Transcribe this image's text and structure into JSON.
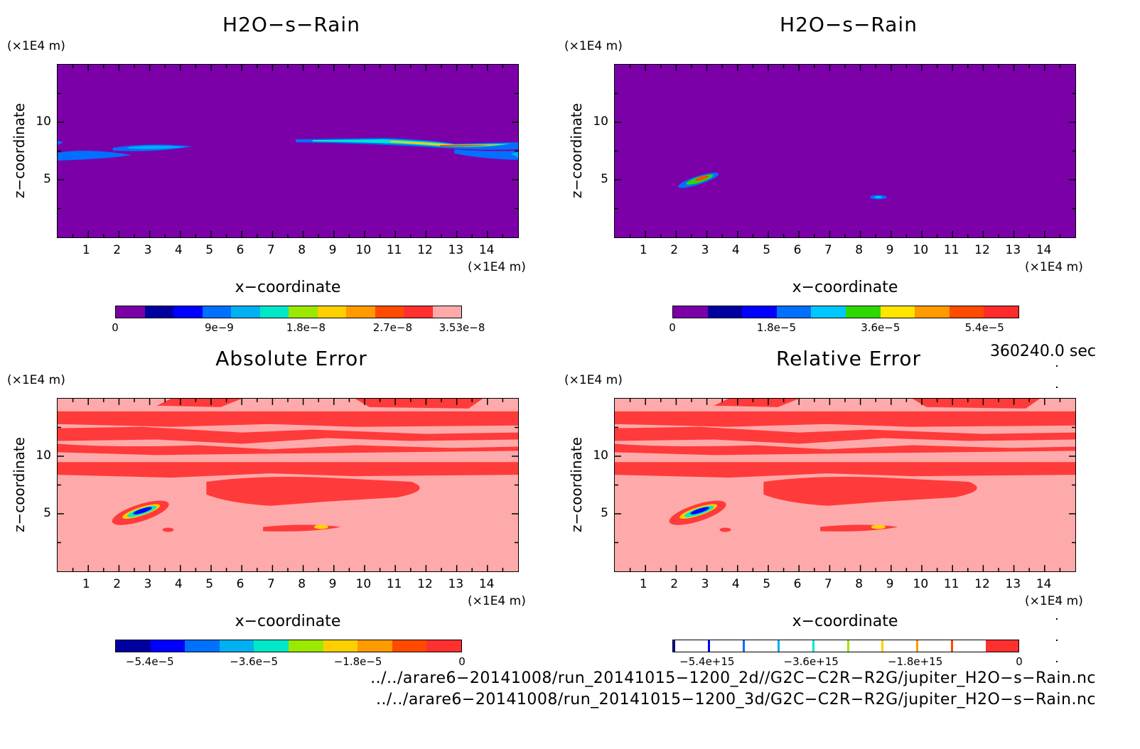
{
  "panels": [
    {
      "title": "H2O−s−Rain",
      "y_unit": "(×1E4 m)",
      "x_unit": "(×1E4 m)",
      "xlabel": "x−coordinate",
      "ylabel": "z−coordinate",
      "xticks": [
        "1",
        "2",
        "3",
        "4",
        "5",
        "6",
        "7",
        "8",
        "9",
        "10",
        "11",
        "12",
        "13",
        "14"
      ],
      "yticks": [
        "5",
        "10"
      ],
      "colorbar_colors": [
        "#7b00a8",
        "#0000a0",
        "#0000ff",
        "#0070ff",
        "#00b0f0",
        "#00e8c8",
        "#9be800",
        "#ffd000",
        "#ff9a00",
        "#ff4a00",
        "#ff3030",
        "#ffaaaa"
      ],
      "colorbar_labels": [
        "0",
        "9e−9",
        "1.8e−8",
        "2.7e−8",
        "3.53e−8"
      ]
    },
    {
      "title": "H2O−s−Rain",
      "y_unit": "(×1E4 m)",
      "x_unit": "(×1E4 m)",
      "xlabel": "x−coordinate",
      "ylabel": "z−coordinate",
      "xticks": [
        "1",
        "2",
        "3",
        "4",
        "5",
        "6",
        "7",
        "8",
        "9",
        "10",
        "11",
        "12",
        "13",
        "14"
      ],
      "yticks": [
        "5",
        "10"
      ],
      "colorbar_colors": [
        "#7b00a8",
        "#0000a0",
        "#0000ff",
        "#0070ff",
        "#00c8ff",
        "#2ed800",
        "#ffe600",
        "#ff9a00",
        "#ff4a00",
        "#ff2a2a"
      ],
      "colorbar_labels": [
        "0",
        "1.8e−5",
        "3.6e−5",
        "5.4e−5"
      ]
    },
    {
      "title": "Absolute Error",
      "y_unit": "(×1E4 m)",
      "x_unit": "(×1E4 m)",
      "xlabel": "x−coordinate",
      "ylabel": "z−coordinate",
      "xticks": [
        "1",
        "2",
        "3",
        "4",
        "5",
        "6",
        "7",
        "8",
        "9",
        "10",
        "11",
        "12",
        "13",
        "14"
      ],
      "yticks": [
        "5",
        "10"
      ],
      "colorbar_colors": [
        "#0000a0",
        "#0000ff",
        "#0070ff",
        "#00b0f0",
        "#00e8c8",
        "#9be800",
        "#ffd000",
        "#ff9a00",
        "#ff4a00",
        "#ff3030"
      ],
      "colorbar_labels": [
        "−5.4e−5",
        "−3.6e−5",
        "−1.8e−5",
        "0"
      ]
    },
    {
      "title": "Relative Error",
      "y_unit": "(×1E4 m)",
      "x_unit": "(×1E4 m)",
      "xlabel": "x−coordinate",
      "ylabel": "z−coordinate",
      "xticks": [
        "1",
        "2",
        "3",
        "4",
        "5",
        "6",
        "7",
        "8",
        "9",
        "10",
        "11",
        "12",
        "13",
        "14"
      ],
      "yticks": [
        "5",
        "10"
      ],
      "colorbar_colors": [
        "#ffffff",
        "#ffffff",
        "#ffffff",
        "#ffffff",
        "#ffffff",
        "#ffffff",
        "#ffffff",
        "#ffffff",
        "#ffffff",
        "#ff3030"
      ],
      "colorbar_labels": [
        "−5.4e+15",
        "−3.6e+15",
        "−1.8e+15",
        "0"
      ]
    }
  ],
  "time_label": "360240.0 sec",
  "footer_lines": [
    "../../arare6−20141008/run_20141015−1200_2d//G2C−C2R−R2G/jupiter_H2O−s−Rain.nc",
    "../../arare6−20141008/run_20141015−1200_3d/G2C−C2R−R2G/jupiter_H2O−s−Rain.nc"
  ],
  "chart_data": [
    {
      "type": "heatmap",
      "title": "H2O−s−Rain",
      "xlabel": "x−coordinate",
      "ylabel": "z−coordinate",
      "xlim": [
        0,
        15
      ],
      "ylim": [
        0,
        15
      ],
      "colorbar_range": [
        0,
        3.53e-08
      ],
      "background": "#7b00a8"
    },
    {
      "type": "heatmap",
      "title": "H2O−s−Rain",
      "xlabel": "x−coordinate",
      "ylabel": "z−coordinate",
      "xlim": [
        0,
        15
      ],
      "ylim": [
        0,
        15
      ],
      "colorbar_range": [
        0,
        6.3e-05
      ],
      "background": "#7b00a8"
    },
    {
      "type": "heatmap",
      "title": "Absolute Error",
      "xlabel": "x−coordinate",
      "ylabel": "z−coordinate",
      "xlim": [
        0,
        15
      ],
      "ylim": [
        0,
        15
      ],
      "colorbar_range": [
        -6.3e-05,
        0
      ],
      "background": "#ffaaaa"
    },
    {
      "type": "heatmap",
      "title": "Relative Error",
      "xlabel": "x−coordinate",
      "ylabel": "z−coordinate",
      "xlim": [
        0,
        15
      ],
      "ylim": [
        0,
        15
      ],
      "colorbar_range": [
        -6300000000000000.0,
        0
      ],
      "background": "#ffaaaa"
    }
  ]
}
